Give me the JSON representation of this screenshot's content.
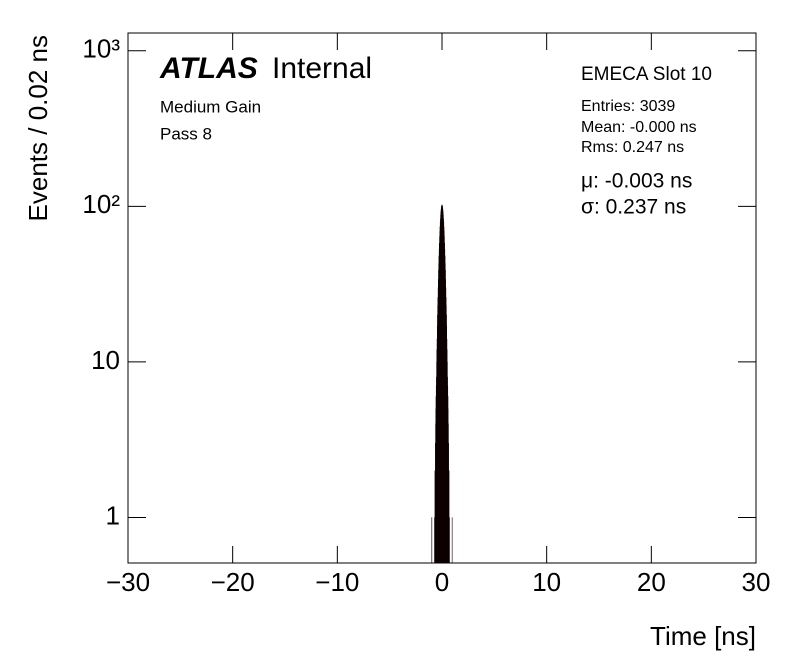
{
  "chart_data": {
    "type": "histogram",
    "xlabel": "Time [ns]",
    "ylabel": "Events / 0.02 ns",
    "annotations": {
      "atlas": "ATLAS",
      "status": "Internal",
      "gain": "Medium Gain",
      "pass": "Pass 8",
      "slot": "EMECA Slot 10",
      "entries": "Entries: 3039",
      "mean": "Mean: -0.000 ns",
      "rms": "Rms: 0.247 ns",
      "mu": "μ: -0.003 ns",
      "sigma": "σ: 0.237 ns"
    },
    "bins": [
      -1.0,
      -0.98,
      -0.96,
      -0.94,
      -0.92,
      -0.9,
      -0.88,
      -0.86,
      -0.84,
      -0.82,
      -0.8,
      -0.78,
      -0.76,
      -0.74,
      -0.72,
      -0.7,
      -0.68,
      -0.66,
      -0.64,
      -0.62,
      -0.6,
      -0.58,
      -0.56,
      -0.54,
      -0.52,
      -0.5,
      -0.48,
      -0.46,
      -0.44,
      -0.42,
      -0.4,
      -0.38,
      -0.36,
      -0.34,
      -0.32,
      -0.3,
      -0.28,
      -0.26,
      -0.24,
      -0.22,
      -0.2,
      -0.18,
      -0.16,
      -0.14,
      -0.12,
      -0.1,
      -0.08,
      -0.06,
      -0.04,
      -0.02,
      0,
      0.02,
      0.04,
      0.06,
      0.08,
      0.1,
      0.12,
      0.14,
      0.16,
      0.18,
      0.2,
      0.22,
      0.24,
      0.26,
      0.28,
      0.3,
      0.32,
      0.34,
      0.36,
      0.38,
      0.4,
      0.42,
      0.44,
      0.46,
      0.48,
      0.5,
      0.52,
      0.54,
      0.56,
      0.58,
      0.6,
      0.62,
      0.64,
      0.66,
      0.68,
      0.7,
      0.72,
      0.74,
      0.76,
      0.78,
      0.8,
      0.82,
      0.84,
      0.86,
      0.88,
      0.9,
      0.92,
      0.94,
      0.96,
      0.98,
      1.0
    ],
    "values": [
      0,
      1,
      0,
      0,
      0,
      0,
      0,
      0,
      0,
      0,
      0,
      0,
      0,
      0,
      1,
      1,
      2,
      2,
      3,
      4,
      5,
      6,
      7,
      8,
      10,
      12,
      14,
      17,
      20,
      23,
      26,
      30,
      34,
      39,
      43,
      48,
      53,
      58,
      64,
      69,
      74,
      79,
      83,
      88,
      92,
      95,
      98,
      100,
      101,
      102,
      102,
      101,
      100,
      98,
      95,
      92,
      88,
      83,
      79,
      74,
      69,
      64,
      58,
      53,
      48,
      43,
      39,
      34,
      30,
      26,
      23,
      20,
      17,
      14,
      12,
      10,
      8,
      7,
      6,
      5,
      4,
      3,
      2,
      2,
      1,
      1,
      0,
      0,
      0,
      0,
      0,
      0,
      0,
      0,
      0,
      0,
      0,
      0,
      1,
      0
    ],
    "color": "#ff0000",
    "edgecolor": "#000000",
    "xlim": [
      -30,
      30
    ],
    "xticks": [
      {
        "value": -30,
        "label": "−30"
      },
      {
        "value": -20,
        "label": "−20"
      },
      {
        "value": -10,
        "label": "−10"
      },
      0,
      10,
      20,
      30
    ],
    "ylim": [
      0.51,
      1300
    ],
    "yscale": "log",
    "yticks": [
      1,
      10,
      {
        "value": 100,
        "label": "10²"
      },
      {
        "value": 1000,
        "label": "10³"
      }
    ]
  }
}
